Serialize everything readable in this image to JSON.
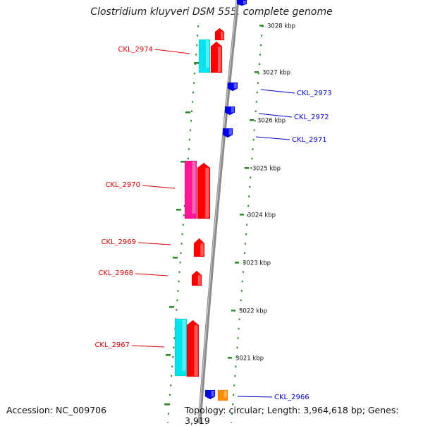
{
  "title": "Clostridium kluyveri DSM 555, complete genome",
  "footer": {
    "accession": "Accession: NC_009706",
    "topology": "Topology: circular; Length: 3,964,618 bp; Genes: 3,919"
  },
  "colors": {
    "background": "#ffffff",
    "backbone": "#8a8a8a",
    "ticks": "#2e8b2e",
    "kbp_label": "#111111",
    "gene_red": "#ff0000",
    "gene_magenta": "#ff1493",
    "gene_cyan": "#00e5ee",
    "gene_blue": "#0000ee",
    "gene_orange": "#ff8c00",
    "label_left": "#dd0000",
    "label_right": "#0000cc"
  },
  "ruler": [
    {
      "label": "3028 kbp"
    },
    {
      "label": "3027 kbp"
    },
    {
      "label": "3026 kbp"
    },
    {
      "label": "3025 kbp"
    },
    {
      "label": "3024 kbp"
    },
    {
      "label": "3023 kbp"
    },
    {
      "label": "3022 kbp"
    },
    {
      "label": "3021 kbp"
    }
  ],
  "gene_labels": [
    {
      "name": "CKL_2974",
      "side": "left"
    },
    {
      "name": "CKL_2973",
      "side": "right"
    },
    {
      "name": "CKL_2972",
      "side": "right"
    },
    {
      "name": "CKL_2971",
      "side": "right"
    },
    {
      "name": "CKL_2970",
      "side": "left"
    },
    {
      "name": "CKL_2969",
      "side": "left"
    },
    {
      "name": "CKL_2968",
      "side": "left"
    },
    {
      "name": "CKL_2967",
      "side": "left"
    },
    {
      "name": "CKL_2966",
      "side": "right"
    }
  ]
}
